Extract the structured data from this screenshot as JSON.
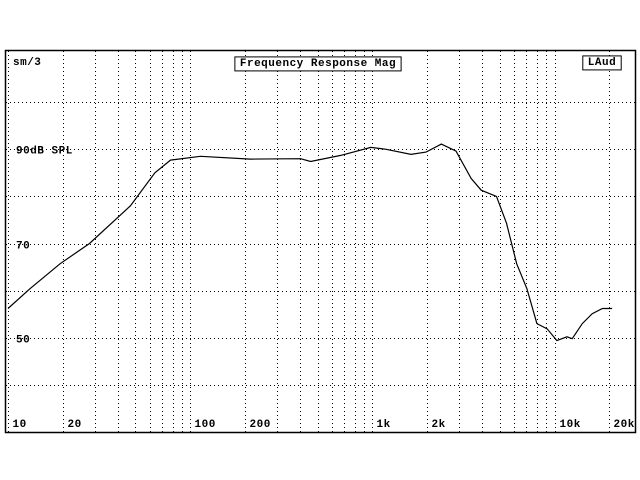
{
  "chart_data": {
    "type": "line",
    "title": "Frequency Response Mag",
    "smoothing_label": "sm/3",
    "channel_label": "LAud",
    "log_x": true,
    "grid": true,
    "color": "#000000",
    "xlim": [
      10,
      28000
    ],
    "ylim": [
      30,
      110
    ],
    "xticks": [
      10,
      20,
      100,
      200,
      {
        "value": 1000,
        "label": "1k"
      },
      {
        "value": 2000,
        "label": "2k"
      },
      {
        "value": 10000,
        "label": "10k"
      },
      {
        "value": 20000,
        "label": "20k"
      }
    ],
    "xminor": [
      30,
      40,
      50,
      60,
      70,
      80,
      90,
      300,
      400,
      500,
      600,
      700,
      800,
      900,
      3000,
      4000,
      5000,
      6000,
      7000,
      8000,
      9000
    ],
    "yticks": [
      50,
      70,
      {
        "value": 90,
        "label": "90dB SPL"
      }
    ],
    "yminor": [
      40,
      60,
      80,
      100
    ],
    "x": [
      10,
      13.2,
      19.3,
      28,
      47,
      64,
      78,
      114,
      214,
      404,
      458,
      670,
      980,
      1190,
      1630,
      1970,
      2390,
      2880,
      3490,
      3960,
      4800,
      5450,
      6200,
      7050,
      8000,
      9100,
      10300,
      11700,
      12500,
      14200,
      16100,
      18300,
      20700
    ],
    "values": [
      56.2,
      60.4,
      65.7,
      70,
      78,
      85,
      87.7,
      88.5,
      87.9,
      88,
      87.4,
      88.7,
      90.4,
      90,
      88.9,
      89.4,
      91.1,
      89.6,
      83.8,
      81.3,
      80,
      74.3,
      65.7,
      60.4,
      53,
      51.9,
      49.4,
      50.2,
      49.8,
      53,
      55.1,
      56.2,
      56.2
    ]
  }
}
